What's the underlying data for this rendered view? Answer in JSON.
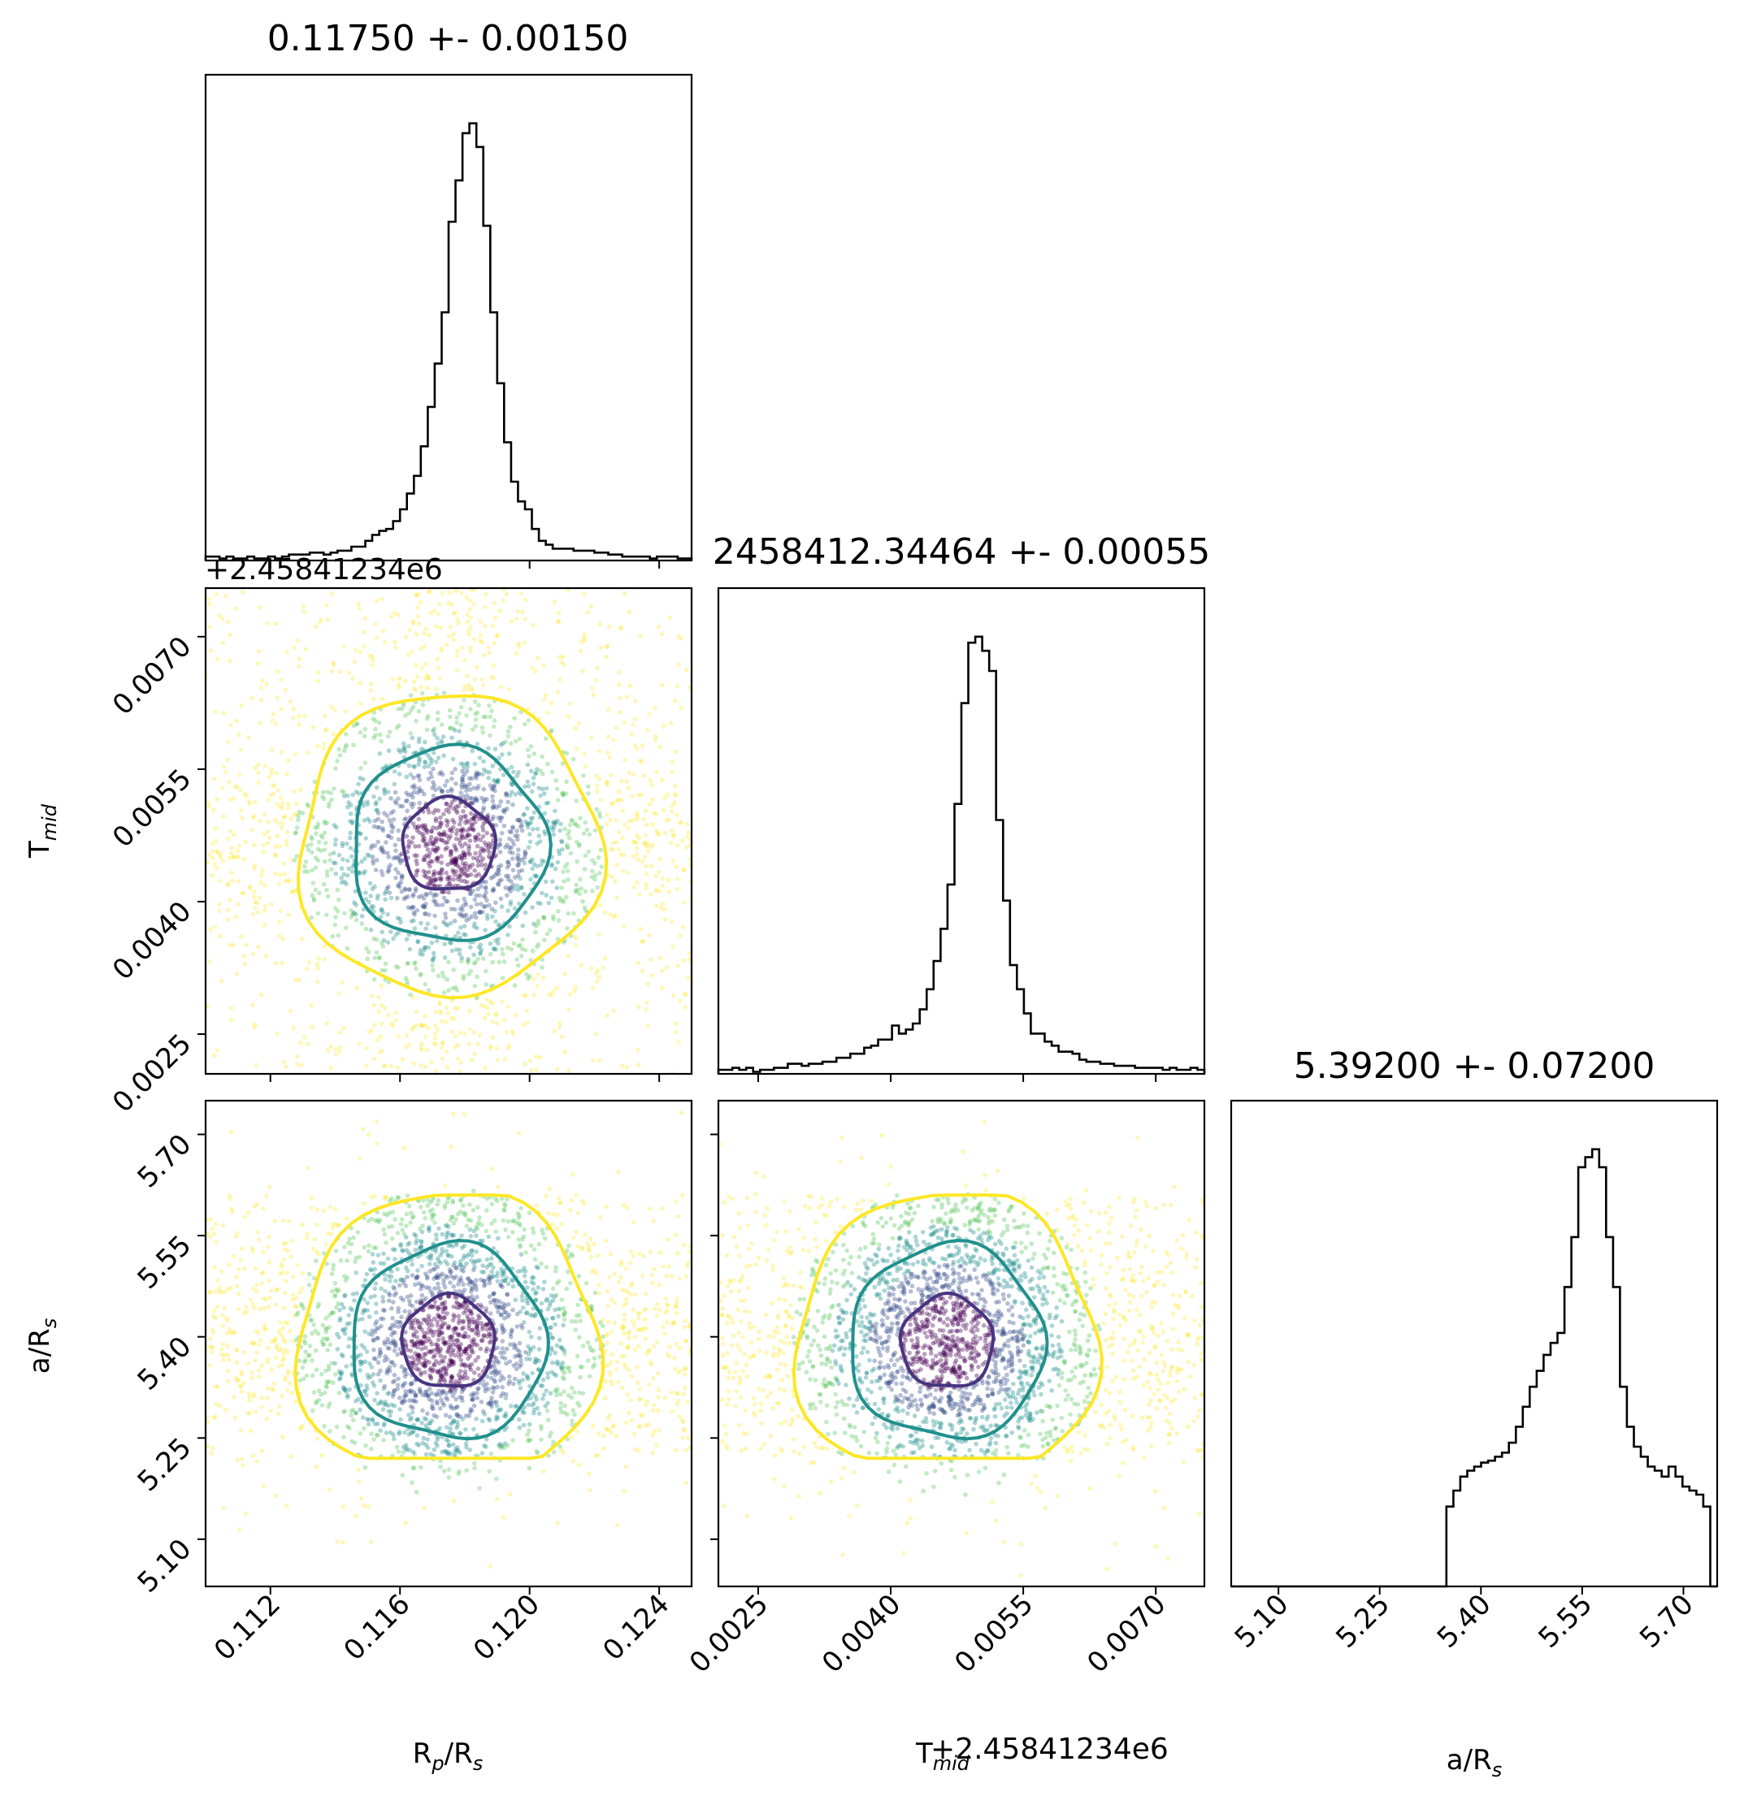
{
  "chart_data": {
    "type": "corner",
    "parameters": [
      {
        "key": "rprs",
        "label": "R",
        "sub": "p",
        "label_tail": "/R",
        "sub_tail": "s",
        "range": [
          0.11,
          0.125
        ],
        "ticks": [
          "0.112",
          "0.116",
          "0.120",
          "0.124"
        ],
        "tick_values": [
          0.112,
          0.116,
          0.12,
          0.124
        ],
        "mean": 0.1175,
        "std": 0.0015,
        "title": "0.11750 +- 0.00150",
        "offset_label": ""
      },
      {
        "key": "tmid",
        "label": "T",
        "sub": "mid",
        "label_tail": "",
        "sub_tail": "",
        "range": [
          0.00205,
          0.00755
        ],
        "ticks": [
          "0.0025",
          "0.0040",
          "0.0055",
          "0.0070"
        ],
        "tick_values": [
          0.0025,
          0.004,
          0.0055,
          0.007
        ],
        "mean": 0.00464,
        "std": 0.00055,
        "title": "2458412.34464 +- 0.00055",
        "offset_label": "+2.45841234e6"
      },
      {
        "key": "ars",
        "label": "a/R",
        "sub": "s",
        "label_tail": "",
        "sub_tail": "",
        "range": [
          5.03,
          5.75
        ],
        "ticks": [
          "5.10",
          "5.25",
          "5.40",
          "5.55",
          "5.70"
        ],
        "tick_values": [
          5.1,
          5.25,
          5.4,
          5.55,
          5.7
        ],
        "mean": 5.392,
        "std": 0.072,
        "title": "5.39200 +- 0.07200",
        "offset_label": ""
      }
    ],
    "histograms": [
      {
        "param": "rprs",
        "bins": 70,
        "shape": [
          2,
          2,
          1,
          2,
          1,
          1,
          2,
          1,
          1,
          2,
          1,
          2,
          3,
          3,
          3,
          4,
          4,
          3,
          4,
          5,
          5,
          7,
          7,
          10,
          13,
          15,
          16,
          20,
          26,
          34,
          43,
          58,
          78,
          100,
          126,
          172,
          193,
          217,
          222,
          210,
          170,
          126,
          90,
          60,
          40,
          30,
          26,
          16,
          10,
          8,
          6,
          6,
          6,
          5,
          5,
          5,
          4,
          4,
          3,
          3,
          2,
          2,
          2,
          2,
          1,
          2,
          2,
          2,
          1,
          1
        ]
      },
      {
        "param": "tmid",
        "bins": 70,
        "shape": [
          2,
          2,
          3,
          2,
          3,
          1,
          2,
          2,
          3,
          3,
          5,
          5,
          4,
          5,
          5,
          6,
          6,
          8,
          8,
          10,
          10,
          13,
          14,
          17,
          17,
          24,
          20,
          22,
          25,
          32,
          42,
          56,
          72,
          94,
          134,
          184,
          214,
          217,
          210,
          200,
          126,
          86,
          54,
          42,
          30,
          20,
          20,
          16,
          14,
          11,
          11,
          10,
          7,
          6,
          6,
          5,
          5,
          4,
          4,
          4,
          3,
          3,
          3,
          3,
          2,
          3,
          2,
          2,
          3,
          2
        ]
      },
      {
        "param": "ars",
        "bins": 70,
        "shape": [
          0,
          0,
          0,
          0,
          0,
          0,
          0,
          0,
          0,
          0,
          0,
          0,
          0,
          0,
          0,
          0,
          0,
          0,
          0,
          0,
          0,
          0,
          0,
          0,
          0,
          0,
          0,
          0,
          0,
          0,
          0,
          40,
          48,
          55,
          58,
          60,
          62,
          63,
          65,
          67,
          72,
          80,
          90,
          100,
          108,
          116,
          122,
          127,
          150,
          175,
          210,
          215,
          219,
          210,
          175,
          150,
          100,
          80,
          70,
          65,
          60,
          58,
          55,
          60,
          55,
          50,
          48,
          46,
          40,
          0
        ]
      }
    ],
    "contour_levels": [
      {
        "name": "inner",
        "color": "#463480"
      },
      {
        "name": "middle",
        "color": "#21908d"
      },
      {
        "name": "outer",
        "color": "#fde725"
      }
    ],
    "scatter_colors": [
      "#440154",
      "#3b528b",
      "#21908d",
      "#5ec962",
      "#fde725"
    ],
    "pairs": [
      [
        "tmid",
        "rprs"
      ],
      [
        "ars",
        "rprs"
      ],
      [
        "ars",
        "tmid"
      ]
    ],
    "grid": false
  }
}
